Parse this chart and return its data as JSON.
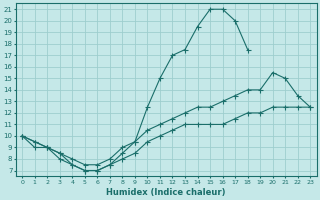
{
  "background_color": "#c5e8e8",
  "grid_color": "#9ecece",
  "line_color": "#1a6e6a",
  "xlabel": "Humidex (Indice chaleur)",
  "xlim": [
    -0.5,
    23.5
  ],
  "ylim": [
    6.5,
    21.5
  ],
  "xticks": [
    0,
    1,
    2,
    3,
    4,
    5,
    6,
    7,
    8,
    9,
    10,
    11,
    12,
    13,
    14,
    15,
    16,
    17,
    18,
    19,
    20,
    21,
    22,
    23
  ],
  "yticks": [
    7,
    8,
    9,
    10,
    11,
    12,
    13,
    14,
    15,
    16,
    17,
    18,
    19,
    20,
    21
  ],
  "curve1_x": [
    0,
    1,
    2,
    3,
    4,
    5,
    6,
    7,
    8,
    9,
    10,
    11,
    12,
    13,
    14,
    15,
    16,
    17,
    18
  ],
  "curve1_y": [
    10,
    9,
    9,
    8,
    7.5,
    7,
    7,
    7.5,
    8.5,
    9.5,
    12.5,
    15,
    17,
    17.5,
    19.5,
    21,
    21,
    20,
    17.5
  ],
  "curve2_x": [
    0,
    1,
    2,
    3,
    4,
    5,
    6,
    7,
    8,
    9,
    10,
    11,
    12,
    13,
    14,
    15,
    16,
    17,
    18,
    19,
    20,
    21,
    22,
    23
  ],
  "curve2_y": [
    10,
    9.5,
    9,
    8.5,
    8,
    7.5,
    7.5,
    8,
    9,
    9.5,
    10.5,
    11,
    11.5,
    12,
    12.5,
    12.5,
    13,
    13.5,
    14,
    14,
    15.5,
    15,
    13.5,
    12.5
  ],
  "curve3_x": [
    0,
    1,
    2,
    3,
    4,
    5,
    6,
    7,
    8,
    9,
    10,
    11,
    12,
    13,
    14,
    15,
    16,
    17,
    18,
    19,
    20,
    21,
    22,
    23
  ],
  "curve3_y": [
    10,
    9.5,
    9,
    8.5,
    7.5,
    7,
    7,
    7.5,
    8,
    8.5,
    9.5,
    10,
    10.5,
    11,
    11,
    11,
    11,
    11.5,
    12,
    12,
    12.5,
    12.5,
    12.5,
    12.5
  ],
  "xtick_fontsize": 4.5,
  "ytick_fontsize": 5.0,
  "xlabel_fontsize": 6.0
}
